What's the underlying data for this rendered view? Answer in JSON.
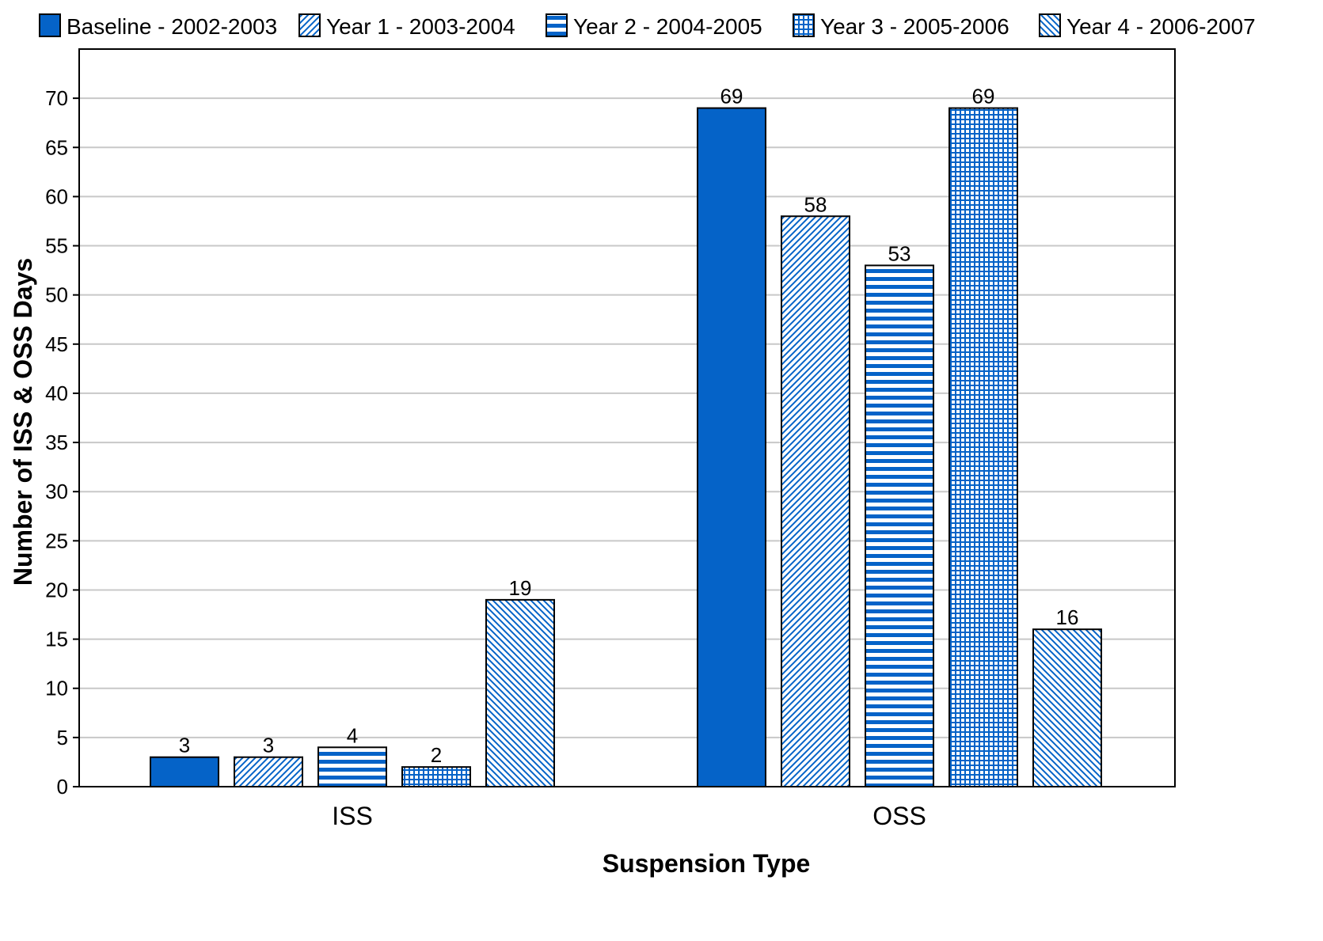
{
  "chart_data": {
    "type": "bar",
    "title": "",
    "xlabel": "Suspension Type",
    "ylabel": "Number of ISS & OSS Days",
    "categories": [
      "ISS",
      "OSS"
    ],
    "series": [
      {
        "name": "Baseline - 2002-2003",
        "values": [
          3,
          69
        ],
        "pattern": "solid"
      },
      {
        "name": "Year 1 - 2003-2004",
        "values": [
          3,
          58
        ],
        "pattern": "diagonal-up"
      },
      {
        "name": "Year 2 - 2004-2005",
        "values": [
          4,
          53
        ],
        "pattern": "horizontal"
      },
      {
        "name": "Year 3 - 2005-2006",
        "values": [
          2,
          69
        ],
        "pattern": "grid"
      },
      {
        "name": "Year 4 - 2006-2007",
        "values": [
          19,
          16
        ],
        "pattern": "diagonal-down"
      }
    ],
    "ylim": [
      0,
      75
    ],
    "yticks": [
      0,
      5,
      10,
      15,
      20,
      25,
      30,
      35,
      40,
      45,
      50,
      55,
      60,
      65,
      70
    ],
    "grid": true,
    "legend_position": "top",
    "data_labels": true
  },
  "colors": {
    "bar": "#0563c8",
    "background": "#ffffff",
    "grid": "#c8c8c8"
  }
}
